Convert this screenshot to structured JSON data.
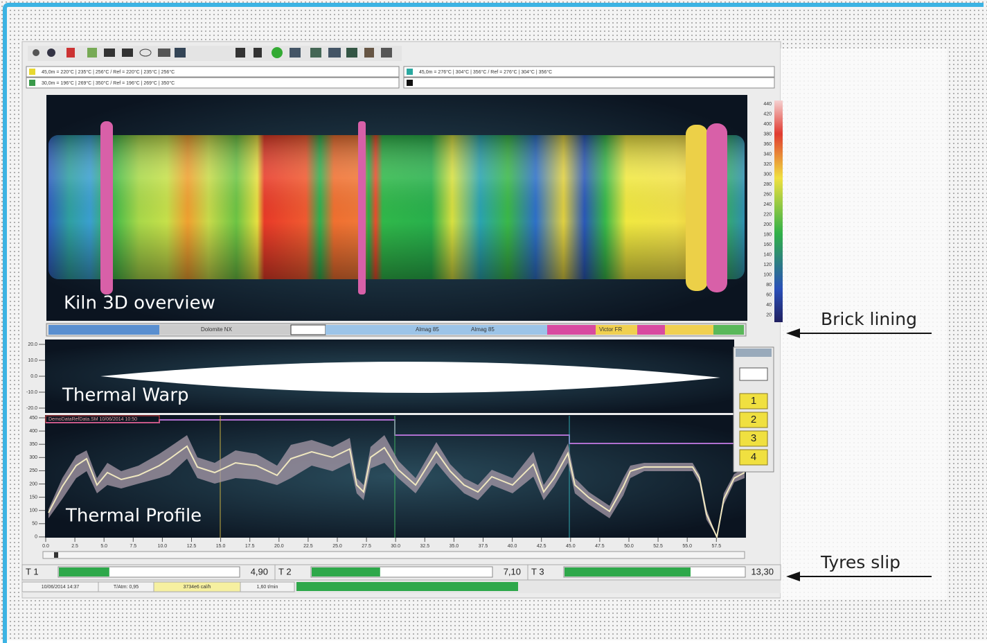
{
  "legend": [
    "45,0m = 220°C | 235°C | 256°C / Ref = 220°C | 235°C | 256°C",
    "30,0m = 196°C | 269°C | 350°C / Ref = 196°C | 269°C | 350°C",
    "45,0m = 276°C | 304°C | 356°C / Ref = 276°C | 304°C | 356°C"
  ],
  "panels": {
    "kiln": "Kiln 3D overview",
    "warp": "Thermal Warp",
    "profile": "Thermal Profile"
  },
  "color_scale_ticks": [
    "440",
    "420",
    "400",
    "380",
    "360",
    "340",
    "320",
    "300",
    "280",
    "260",
    "240",
    "220",
    "200",
    "180",
    "160",
    "140",
    "120",
    "100",
    "80",
    "60",
    "40",
    "20"
  ],
  "brick_lining": [
    "Dolomite NX",
    "Almag 85",
    "Almag 85",
    "Victor FR"
  ],
  "warp_ticks": [
    "20.0",
    "10.0",
    "0.0",
    "-10.0",
    "-20.0"
  ],
  "profile_header": "DemoDataRefData.SM 10/06/2014 10:50",
  "profile_yticks": [
    "450",
    "400",
    "350",
    "300",
    "250",
    "200",
    "150",
    "100",
    "50",
    "0"
  ],
  "profile_xticks": [
    "0.0",
    "2.5",
    "5.0",
    "7.5",
    "10.0",
    "12.5",
    "15.0",
    "17.5",
    "20.0",
    "22.5",
    "25.0",
    "27.5",
    "30.0",
    "32.5",
    "35.0",
    "37.5",
    "40.0",
    "42.5",
    "45.0",
    "47.5",
    "50.0",
    "52.5",
    "55.0",
    "57.5"
  ],
  "buttons": [
    "1",
    "2",
    "3",
    "4"
  ],
  "tyre_slip": [
    {
      "label": "T 1",
      "value": "4,90"
    },
    {
      "label": "T 2",
      "value": "7,10"
    },
    {
      "label": "T 3",
      "value": "13,30"
    }
  ],
  "status": [
    "10/06/2014 14:37",
    "T/Atm: 0,95",
    "3734e6 cal/h",
    "1,60 t/min"
  ],
  "annotations": [
    "Brick lining",
    "Tyres slip"
  ]
}
